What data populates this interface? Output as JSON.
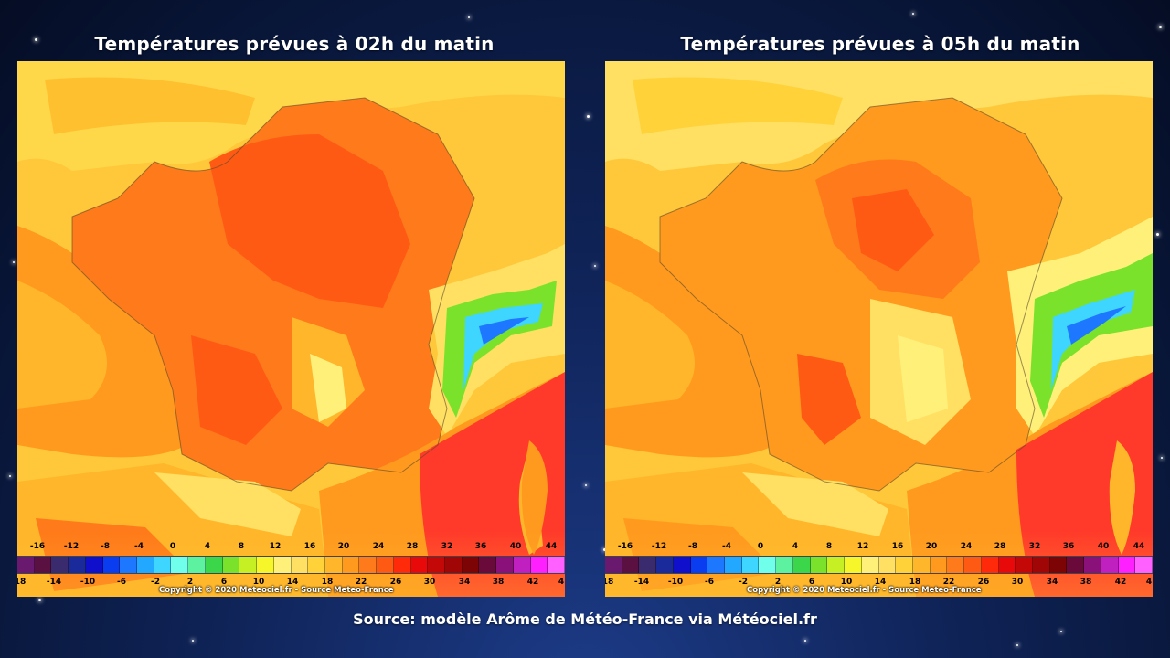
{
  "panels": [
    {
      "title": "Températures prévues à 02h du matin",
      "copyright": "Copyright © 2020 Meteociel.fr - Source Meteo-France"
    },
    {
      "title": "Températures prévues à 05h du matin",
      "copyright": "Copyright © 2020 Meteociel.fr - Source Meteo-France"
    }
  ],
  "legend": {
    "top_ticks": [
      "-16",
      "-12",
      "-8",
      "-4",
      "0",
      "4",
      "8",
      "12",
      "16",
      "20",
      "24",
      "28",
      "32",
      "36",
      "40",
      "44"
    ],
    "bottom_ticks": [
      "18",
      "-14",
      "-10",
      "-6",
      "-2",
      "2",
      "6",
      "10",
      "14",
      "18",
      "22",
      "26",
      "30",
      "34",
      "38",
      "42",
      "4"
    ],
    "colors": [
      "#6a1a6e",
      "#5a1040",
      "#3a2a6e",
      "#1b2a9a",
      "#1010cc",
      "#0a3cf0",
      "#1e78ff",
      "#23a8ff",
      "#3ed6ff",
      "#6fffea",
      "#5cf2a0",
      "#3cd64a",
      "#7ae22a",
      "#c6f024",
      "#f6f62a",
      "#fff07a",
      "#ffe063",
      "#ffd23a",
      "#ffb62a",
      "#ff9a1e",
      "#ff7a1a",
      "#ff5a14",
      "#ff2a0a",
      "#e80a0a",
      "#c40808",
      "#a00606",
      "#7c0404",
      "#6a0a3a",
      "#8a107a",
      "#c020c0",
      "#ff20ff",
      "#ff60ff"
    ]
  },
  "source": "Source: modèle Arôme de Météo-France via Météociel.fr"
}
